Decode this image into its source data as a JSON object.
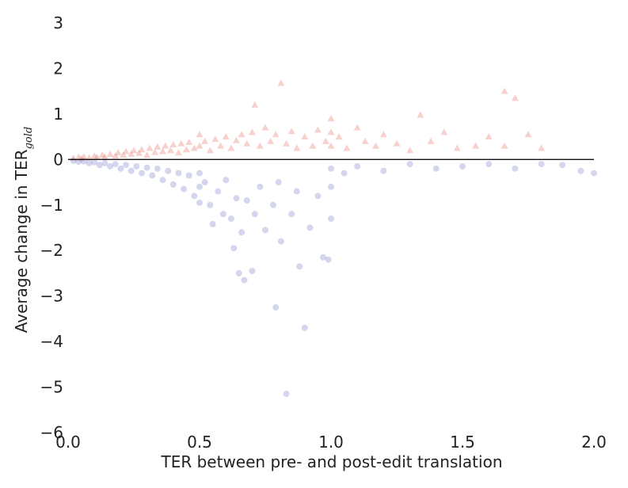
{
  "chart_data": {
    "type": "scatter",
    "xlabel": "TER between pre- and post-edit translation",
    "ylabel_main": "Average change in TER",
    "ylabel_sub": "gold",
    "xlim": [
      0.0,
      2.0
    ],
    "ylim": [
      -6,
      3
    ],
    "x_ticks": [
      0.0,
      0.5,
      1.0,
      1.5,
      2.0
    ],
    "x_tick_labels": [
      "0.0",
      "0.5",
      "1.0",
      "1.5",
      "2.0"
    ],
    "y_ticks": [
      3,
      2,
      1,
      0,
      -1,
      -2,
      -3,
      -4,
      -5,
      -6
    ],
    "y_tick_labels": [
      "3",
      "2",
      "1",
      "0",
      "−1",
      "−2",
      "−3",
      "−4",
      "−5",
      "−6"
    ],
    "grid": false,
    "reference_line_y": 0,
    "series": [
      {
        "marker": "triangle",
        "color": "#d42d1c",
        "points": [
          [
            0.02,
            0.03
          ],
          [
            0.04,
            0.05
          ],
          [
            0.05,
            0.02
          ],
          [
            0.06,
            0.06
          ],
          [
            0.08,
            0.04
          ],
          [
            0.1,
            0.08
          ],
          [
            0.11,
            0.05
          ],
          [
            0.13,
            0.1
          ],
          [
            0.14,
            0.06
          ],
          [
            0.16,
            0.12
          ],
          [
            0.18,
            0.08
          ],
          [
            0.19,
            0.15
          ],
          [
            0.21,
            0.1
          ],
          [
            0.22,
            0.18
          ],
          [
            0.24,
            0.12
          ],
          [
            0.25,
            0.2
          ],
          [
            0.27,
            0.14
          ],
          [
            0.28,
            0.22
          ],
          [
            0.3,
            0.1
          ],
          [
            0.31,
            0.25
          ],
          [
            0.33,
            0.16
          ],
          [
            0.34,
            0.28
          ],
          [
            0.36,
            0.18
          ],
          [
            0.37,
            0.3
          ],
          [
            0.39,
            0.2
          ],
          [
            0.4,
            0.33
          ],
          [
            0.42,
            0.15
          ],
          [
            0.43,
            0.35
          ],
          [
            0.45,
            0.22
          ],
          [
            0.46,
            0.38
          ],
          [
            0.48,
            0.25
          ],
          [
            0.5,
            0.55
          ],
          [
            0.5,
            0.3
          ],
          [
            0.52,
            0.4
          ],
          [
            0.54,
            0.2
          ],
          [
            0.56,
            0.45
          ],
          [
            0.58,
            0.3
          ],
          [
            0.6,
            0.5
          ],
          [
            0.62,
            0.25
          ],
          [
            0.64,
            0.42
          ],
          [
            0.66,
            0.55
          ],
          [
            0.68,
            0.35
          ],
          [
            0.7,
            0.6
          ],
          [
            0.71,
            1.2
          ],
          [
            0.73,
            0.3
          ],
          [
            0.75,
            0.7
          ],
          [
            0.77,
            0.4
          ],
          [
            0.79,
            0.55
          ],
          [
            0.81,
            1.68
          ],
          [
            0.83,
            0.35
          ],
          [
            0.85,
            0.62
          ],
          [
            0.87,
            0.25
          ],
          [
            0.9,
            0.5
          ],
          [
            0.93,
            0.3
          ],
          [
            0.95,
            0.65
          ],
          [
            0.98,
            0.4
          ],
          [
            1.0,
            0.9
          ],
          [
            1.0,
            0.6
          ],
          [
            1.0,
            0.3
          ],
          [
            1.03,
            0.5
          ],
          [
            1.06,
            0.25
          ],
          [
            1.1,
            0.7
          ],
          [
            1.13,
            0.4
          ],
          [
            1.17,
            0.3
          ],
          [
            1.2,
            0.55
          ],
          [
            1.25,
            0.35
          ],
          [
            1.3,
            0.2
          ],
          [
            1.34,
            0.98
          ],
          [
            1.38,
            0.4
          ],
          [
            1.43,
            0.6
          ],
          [
            1.48,
            0.25
          ],
          [
            1.55,
            0.3
          ],
          [
            1.6,
            0.5
          ],
          [
            1.66,
            1.5
          ],
          [
            1.7,
            1.35
          ],
          [
            1.66,
            0.3
          ],
          [
            1.75,
            0.55
          ],
          [
            1.8,
            0.25
          ]
        ]
      },
      {
        "marker": "circle",
        "color": "#3a46ad",
        "points": [
          [
            0.02,
            -0.03
          ],
          [
            0.04,
            -0.05
          ],
          [
            0.06,
            -0.04
          ],
          [
            0.08,
            -0.08
          ],
          [
            0.1,
            -0.06
          ],
          [
            0.12,
            -0.12
          ],
          [
            0.14,
            -0.08
          ],
          [
            0.16,
            -0.15
          ],
          [
            0.18,
            -0.1
          ],
          [
            0.2,
            -0.2
          ],
          [
            0.22,
            -0.12
          ],
          [
            0.24,
            -0.25
          ],
          [
            0.26,
            -0.15
          ],
          [
            0.28,
            -0.3
          ],
          [
            0.3,
            -0.18
          ],
          [
            0.32,
            -0.35
          ],
          [
            0.34,
            -0.2
          ],
          [
            0.36,
            -0.45
          ],
          [
            0.38,
            -0.25
          ],
          [
            0.4,
            -0.55
          ],
          [
            0.42,
            -0.3
          ],
          [
            0.44,
            -0.65
          ],
          [
            0.46,
            -0.35
          ],
          [
            0.48,
            -0.8
          ],
          [
            0.5,
            -0.95
          ],
          [
            0.5,
            -0.6
          ],
          [
            0.5,
            -0.3
          ],
          [
            0.52,
            -0.5
          ],
          [
            0.54,
            -1.0
          ],
          [
            0.55,
            -1.42
          ],
          [
            0.57,
            -0.7
          ],
          [
            0.59,
            -1.2
          ],
          [
            0.6,
            -0.45
          ],
          [
            0.62,
            -1.3
          ],
          [
            0.63,
            -1.95
          ],
          [
            0.64,
            -0.85
          ],
          [
            0.65,
            -2.5
          ],
          [
            0.66,
            -1.6
          ],
          [
            0.67,
            -2.65
          ],
          [
            0.68,
            -0.9
          ],
          [
            0.7,
            -2.45
          ],
          [
            0.71,
            -1.2
          ],
          [
            0.73,
            -0.6
          ],
          [
            0.75,
            -1.55
          ],
          [
            0.78,
            -1.0
          ],
          [
            0.79,
            -3.25
          ],
          [
            0.8,
            -0.5
          ],
          [
            0.81,
            -1.8
          ],
          [
            0.83,
            -5.15
          ],
          [
            0.85,
            -1.2
          ],
          [
            0.87,
            -0.7
          ],
          [
            0.88,
            -2.35
          ],
          [
            0.9,
            -3.7
          ],
          [
            0.92,
            -1.5
          ],
          [
            0.95,
            -0.8
          ],
          [
            0.97,
            -2.15
          ],
          [
            0.99,
            -2.2
          ],
          [
            1.0,
            -1.3
          ],
          [
            1.0,
            -0.6
          ],
          [
            1.0,
            -0.2
          ],
          [
            1.05,
            -0.3
          ],
          [
            1.1,
            -0.15
          ],
          [
            1.2,
            -0.25
          ],
          [
            1.3,
            -0.1
          ],
          [
            1.4,
            -0.2
          ],
          [
            1.5,
            -0.15
          ],
          [
            1.6,
            -0.1
          ],
          [
            1.7,
            -0.2
          ],
          [
            1.8,
            -0.1
          ],
          [
            1.88,
            -0.12
          ],
          [
            1.95,
            -0.25
          ],
          [
            2.0,
            -0.3
          ]
        ]
      }
    ]
  }
}
